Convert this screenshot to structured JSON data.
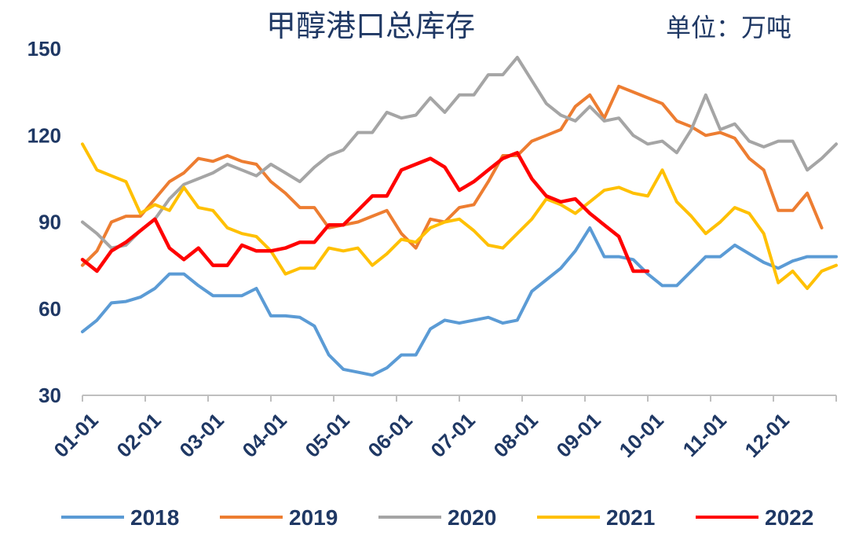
{
  "chart_data": {
    "type": "line",
    "title": "甲醇港口总库存",
    "unit_label": "单位：万吨",
    "ylim": [
      30,
      150
    ],
    "yticks": [
      "30",
      "60",
      "90",
      "120",
      "150"
    ],
    "xticks": [
      "01-01",
      "02-01",
      "03-01",
      "04-01",
      "05-01",
      "06-01",
      "07-01",
      "08-01",
      "09-01",
      "10-01",
      "11-01",
      "12-01"
    ],
    "x_range": [
      1,
      53
    ],
    "legend_position": "bottom",
    "series": [
      {
        "name": "2018",
        "color": "#5b9bd5",
        "x": [
          1,
          2,
          3,
          4,
          5,
          6,
          7,
          8,
          9,
          10,
          11,
          12,
          13,
          14,
          15,
          16,
          17,
          18,
          19,
          20,
          21,
          22,
          23,
          24,
          25,
          26,
          27,
          28,
          29,
          30,
          31,
          32,
          33,
          34,
          35,
          36,
          37,
          38,
          39,
          40,
          41,
          42,
          43,
          44,
          45,
          46,
          47,
          48,
          49,
          50,
          51,
          52,
          53
        ],
        "values": [
          52,
          56,
          62,
          62.5,
          64,
          67,
          72,
          72,
          68,
          64.5,
          64.5,
          64.5,
          67,
          57.5,
          57.5,
          57,
          54,
          44,
          39,
          38,
          37,
          39.5,
          44,
          44,
          53,
          56,
          55,
          56,
          57,
          55,
          56,
          66,
          70,
          74,
          80,
          88,
          78,
          78,
          77,
          72,
          68,
          68,
          73,
          78,
          78,
          82,
          79,
          76,
          74,
          76.5,
          78,
          78,
          78
        ]
      },
      {
        "name": "2019",
        "color": "#ed7d31",
        "x": [
          1,
          2,
          3,
          4,
          5,
          6,
          7,
          8,
          9,
          10,
          11,
          12,
          13,
          14,
          15,
          16,
          17,
          18,
          19,
          20,
          21,
          22,
          23,
          24,
          25,
          26,
          27,
          28,
          29,
          30,
          31,
          32,
          33,
          34,
          35,
          36,
          37,
          38,
          39,
          40,
          41,
          42,
          43,
          44,
          45,
          46,
          47,
          48,
          49,
          50,
          51,
          52
        ],
        "values": [
          75,
          80,
          90,
          92,
          92,
          98,
          104,
          107,
          112,
          111,
          113,
          111,
          110,
          104,
          100,
          95,
          95,
          88,
          89,
          90,
          92,
          94,
          86,
          81,
          91,
          90,
          95,
          96,
          104,
          113,
          113,
          118,
          120,
          122,
          130,
          134,
          126,
          137,
          135,
          133,
          131,
          125,
          123,
          120,
          121,
          119,
          112,
          108,
          94,
          94,
          100,
          88
        ]
      },
      {
        "name": "2020",
        "color": "#a5a5a5",
        "x": [
          1,
          2,
          3,
          4,
          5,
          6,
          7,
          8,
          9,
          10,
          11,
          12,
          13,
          14,
          15,
          16,
          17,
          18,
          19,
          20,
          21,
          22,
          23,
          24,
          25,
          26,
          27,
          28,
          29,
          30,
          31,
          32,
          33,
          34,
          35,
          36,
          37,
          38,
          39,
          40,
          41,
          42,
          43,
          44,
          45,
          46,
          47,
          48,
          49,
          50,
          51,
          52,
          53
        ],
        "values": [
          90,
          86,
          81,
          82,
          87,
          91,
          98,
          103,
          105,
          107,
          110,
          108,
          106,
          110,
          107,
          104,
          109,
          113,
          115,
          121,
          121,
          128,
          126,
          127,
          133,
          128,
          134,
          134,
          141,
          141,
          147,
          139,
          131,
          127,
          125,
          130,
          125,
          126,
          120,
          117,
          118,
          114,
          122,
          134,
          122,
          124,
          118,
          116,
          118,
          118,
          108,
          112,
          117
        ]
      },
      {
        "name": "2021",
        "color": "#ffc000",
        "x": [
          1,
          2,
          3,
          4,
          5,
          6,
          7,
          8,
          9,
          10,
          11,
          12,
          13,
          14,
          15,
          16,
          17,
          18,
          19,
          20,
          21,
          22,
          23,
          24,
          25,
          26,
          27,
          28,
          29,
          30,
          31,
          32,
          33,
          34,
          35,
          36,
          37,
          38,
          39,
          40,
          41,
          42,
          43,
          44,
          45,
          46,
          47,
          48,
          49,
          50,
          51,
          52,
          53
        ],
        "values": [
          117,
          108,
          106,
          104,
          93,
          96,
          94,
          102,
          95,
          94,
          88,
          86,
          85,
          80,
          72,
          74,
          74,
          81,
          80,
          81,
          75,
          79,
          84,
          83,
          88,
          90,
          91,
          87,
          82,
          81,
          86,
          91,
          98,
          96,
          93,
          97,
          101,
          102,
          100,
          99,
          108,
          97,
          92,
          86,
          90,
          95,
          93,
          86,
          69,
          73,
          67,
          73,
          75
        ]
      },
      {
        "name": "2022",
        "color": "#ff0000",
        "x": [
          1,
          2,
          3,
          4,
          5,
          6,
          7,
          8,
          9,
          10,
          11,
          12,
          13,
          14,
          15,
          16,
          17,
          18,
          19,
          20,
          21,
          22,
          23,
          24,
          25,
          26,
          27,
          28,
          29,
          30,
          31,
          32,
          33,
          34,
          35,
          36,
          37,
          38,
          39,
          40
        ],
        "values": [
          77,
          73,
          80,
          83,
          87,
          91,
          81,
          77,
          81,
          75,
          75,
          82,
          80,
          80,
          81,
          83,
          83,
          89,
          89,
          94,
          99,
          99,
          108,
          110,
          112,
          109,
          101,
          104,
          108,
          112,
          114,
          105,
          99,
          97,
          98,
          93,
          89,
          85,
          73,
          73
        ]
      }
    ]
  }
}
